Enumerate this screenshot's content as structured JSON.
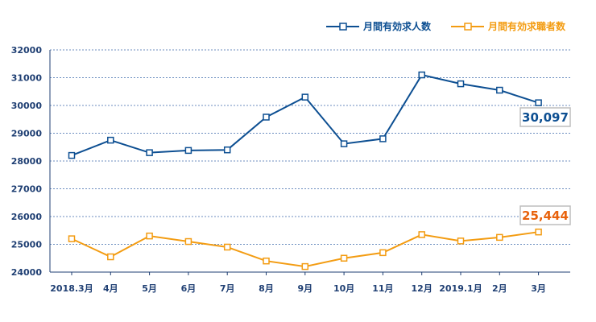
{
  "chart_data": {
    "type": "line",
    "categories": [
      "2018.3月",
      "4月",
      "5月",
      "6月",
      "7月",
      "8月",
      "9月",
      "10月",
      "11月",
      "12月",
      "2019.1月",
      "2月",
      "3月"
    ],
    "yticks": [
      "32000",
      "31000",
      "30000",
      "29000",
      "28000",
      "27000",
      "26000",
      "25000",
      "24000"
    ],
    "ylim": [
      24000,
      32000
    ],
    "grid": true,
    "legend_position": "top-right",
    "series": [
      {
        "name": "月間有効求人数",
        "color": "#0d4f92",
        "values": [
          28200,
          28750,
          28300,
          28380,
          28400,
          29580,
          30300,
          28620,
          28800,
          31100,
          30780,
          30550,
          30097
        ],
        "callout": "30,097"
      },
      {
        "name": "月間有効求職者数",
        "color": "#f39c12",
        "values": [
          25200,
          24550,
          25300,
          25100,
          24900,
          24400,
          24200,
          24500,
          24700,
          25350,
          25120,
          25250,
          25444
        ],
        "callout": "25,444"
      }
    ]
  }
}
